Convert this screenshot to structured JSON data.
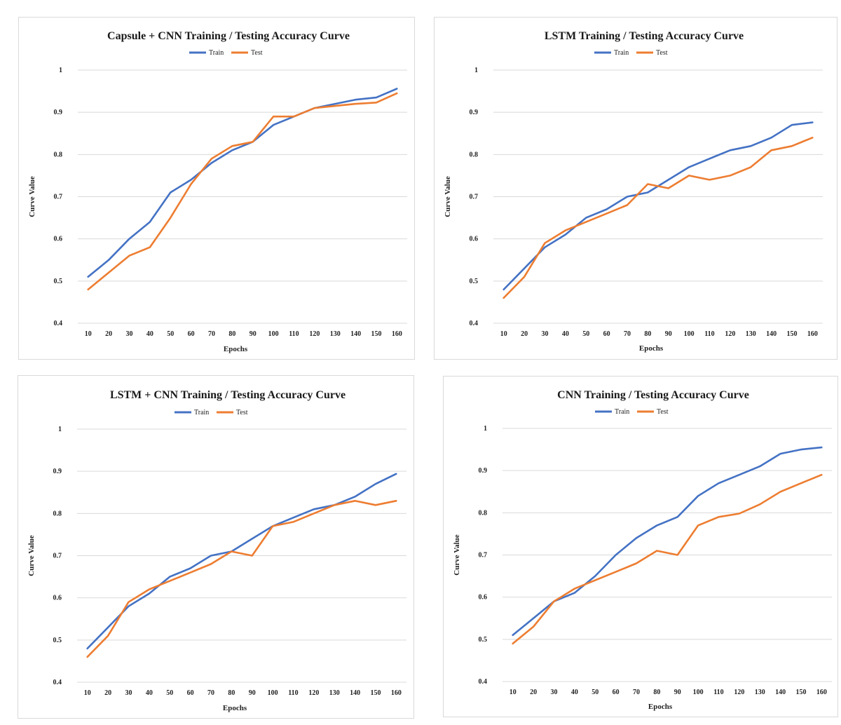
{
  "chart_data": [
    {
      "type": "line",
      "title": "Capsule + CNN Training / Testing Accuracy Curve",
      "xlabel": "Epochs",
      "ylabel": "Curve Value",
      "x": [
        10,
        20,
        30,
        40,
        50,
        60,
        70,
        80,
        90,
        100,
        110,
        120,
        130,
        140,
        150,
        160
      ],
      "ylim": [
        0.4,
        1
      ],
      "yticks": [
        "0.4",
        "0.5",
        "0.6",
        "0.7",
        "0.8",
        "0.9",
        "1"
      ],
      "grid": true,
      "legend_position": "top",
      "series": [
        {
          "name": "Train",
          "color": "#4472C4",
          "values": [
            0.51,
            0.55,
            0.6,
            0.64,
            0.71,
            0.74,
            0.78,
            0.81,
            0.83,
            0.87,
            0.89,
            0.91,
            0.92,
            0.93,
            0.935,
            0.956
          ]
        },
        {
          "name": "Test",
          "color": "#ED7D31",
          "values": [
            0.48,
            0.52,
            0.56,
            0.58,
            0.65,
            0.73,
            0.79,
            0.82,
            0.83,
            0.89,
            0.89,
            0.91,
            0.915,
            0.92,
            0.923,
            0.945
          ]
        }
      ]
    },
    {
      "type": "line",
      "title": "LSTM Training / Testing Accuracy Curve",
      "xlabel": "Epochs",
      "ylabel": "Curve Value",
      "x": [
        10,
        20,
        30,
        40,
        50,
        60,
        70,
        80,
        90,
        100,
        110,
        120,
        130,
        140,
        150,
        160
      ],
      "ylim": [
        0.4,
        1
      ],
      "yticks": [
        "0.4",
        "0.5",
        "0.6",
        "0.7",
        "0.8",
        "0.9",
        "1"
      ],
      "grid": true,
      "legend_position": "top",
      "series": [
        {
          "name": "Train",
          "color": "#4472C4",
          "values": [
            0.48,
            0.53,
            0.58,
            0.61,
            0.65,
            0.67,
            0.7,
            0.71,
            0.74,
            0.77,
            0.79,
            0.81,
            0.82,
            0.84,
            0.87,
            0.876
          ]
        },
        {
          "name": "Test",
          "color": "#ED7D31",
          "values": [
            0.46,
            0.51,
            0.59,
            0.62,
            0.64,
            0.66,
            0.68,
            0.73,
            0.72,
            0.75,
            0.74,
            0.75,
            0.77,
            0.81,
            0.82,
            0.84
          ]
        }
      ]
    },
    {
      "type": "line",
      "title": "LSTM + CNN Training / Testing Accuracy Curve",
      "xlabel": "Epochs",
      "ylabel": "Curve Value",
      "x": [
        10,
        20,
        30,
        40,
        50,
        60,
        70,
        80,
        90,
        100,
        110,
        120,
        130,
        140,
        150,
        160
      ],
      "ylim": [
        0.4,
        1
      ],
      "yticks": [
        "0.4",
        "0.5",
        "0.6",
        "0.7",
        "0.8",
        "0.9",
        "1"
      ],
      "grid": true,
      "legend_position": "top",
      "series": [
        {
          "name": "Train",
          "color": "#4472C4",
          "values": [
            0.48,
            0.53,
            0.58,
            0.61,
            0.65,
            0.67,
            0.7,
            0.71,
            0.74,
            0.77,
            0.79,
            0.81,
            0.82,
            0.84,
            0.87,
            0.894
          ]
        },
        {
          "name": "Test",
          "color": "#ED7D31",
          "values": [
            0.46,
            0.51,
            0.59,
            0.62,
            0.64,
            0.66,
            0.68,
            0.71,
            0.7,
            0.77,
            0.78,
            0.8,
            0.82,
            0.83,
            0.82,
            0.83
          ]
        }
      ]
    },
    {
      "type": "line",
      "title": "CNN Training / Testing Accuracy Curve",
      "xlabel": "Epochs",
      "ylabel": "Curve Value",
      "x": [
        10,
        20,
        30,
        40,
        50,
        60,
        70,
        80,
        90,
        100,
        110,
        120,
        130,
        140,
        150,
        160
      ],
      "ylim": [
        0.4,
        1
      ],
      "yticks": [
        "0.4",
        "0.5",
        "0.6",
        "0.7",
        "0.8",
        "0.9",
        "1"
      ],
      "grid": true,
      "legend_position": "top",
      "series": [
        {
          "name": "Train",
          "color": "#4472C4",
          "values": [
            0.51,
            0.55,
            0.59,
            0.61,
            0.65,
            0.7,
            0.74,
            0.77,
            0.79,
            0.84,
            0.87,
            0.89,
            0.91,
            0.94,
            0.95,
            0.955
          ]
        },
        {
          "name": "Test",
          "color": "#ED7D31",
          "values": [
            0.49,
            0.53,
            0.59,
            0.62,
            0.64,
            0.66,
            0.68,
            0.71,
            0.7,
            0.77,
            0.79,
            0.798,
            0.82,
            0.85,
            0.87,
            0.89
          ]
        }
      ]
    }
  ]
}
